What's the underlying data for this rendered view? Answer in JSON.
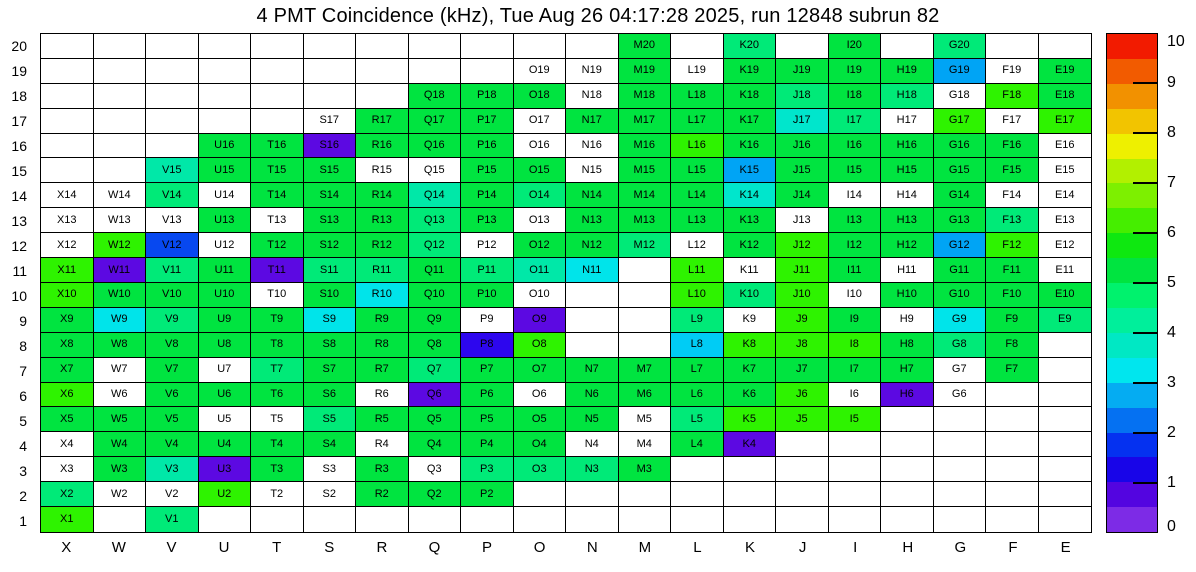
{
  "chart_data": {
    "type": "heatmap",
    "title": "4 PMT Coincidence (kHz), Tue Aug 26 04:17:28 2025, run 12848 subrun 82",
    "x_categories": [
      "X",
      "W",
      "V",
      "U",
      "T",
      "S",
      "R",
      "Q",
      "P",
      "O",
      "N",
      "M",
      "L",
      "K",
      "J",
      "I",
      "H",
      "G",
      "F",
      "E"
    ],
    "y_categories": [
      "20",
      "19",
      "18",
      "17",
      "16",
      "15",
      "14",
      "13",
      "12",
      "11",
      "10",
      "9",
      "8",
      "7",
      "6",
      "5",
      "4",
      "3",
      "2",
      "1"
    ],
    "palette": {
      "g": "#00e440",
      "bg": "#2ef300",
      "sg": "#00ea78",
      "tg": "#00e8a8",
      "tc": "#00e6cc",
      "cy": "#00e4ea",
      "cb": "#00ccf5",
      "sb": "#00a4f5",
      "bl": "#0748f0",
      "bv": "#2d06ee",
      "pu": "#5c09e2",
      "w": "#ffffff"
    },
    "value_estimates_khz": {
      "g": 5.2,
      "bg": 5.8,
      "sg": 4.8,
      "tg": 4.3,
      "tc": 3.8,
      "cy": 3.4,
      "cb": 3.1,
      "sb": 2.8,
      "bl": 2.0,
      "bv": 1.2,
      "pu": 0.8
    },
    "rows": [
      {
        "num": "20",
        "cells": [
          "",
          "",
          "",
          "",
          "",
          "",
          "",
          "",
          "",
          "",
          "",
          "g:M20",
          "",
          "sg:K20",
          "",
          "g:I20",
          "",
          "sg:G20",
          "",
          ""
        ]
      },
      {
        "num": "19",
        "cells": [
          "",
          "",
          "",
          "",
          "",
          "",
          "",
          "",
          "",
          "w:O19",
          "w:N19",
          "g:M19",
          "w:L19",
          "g:K19",
          "g:J19",
          "g:I19",
          "g:H19",
          "sb:G19",
          "w:F19",
          "g:E19"
        ]
      },
      {
        "num": "18",
        "cells": [
          "",
          "",
          "",
          "",
          "",
          "",
          "",
          "g:Q18",
          "g:P18",
          "g:O18",
          "w:N18",
          "g:M18",
          "g:L18",
          "g:K18",
          "sg:J18",
          "g:I18",
          "sg:H18",
          "w:G18",
          "bg:F18",
          "g:E18"
        ]
      },
      {
        "num": "17",
        "cells": [
          "",
          "",
          "",
          "",
          "",
          "w:S17",
          "g:R17",
          "g:Q17",
          "g:P17",
          "w:O17",
          "g:N17",
          "g:M17",
          "g:L17",
          "g:K17",
          "tc:J17",
          "sg:I17",
          "w:H17",
          "bg:G17",
          "w:F17",
          "bg:E17"
        ]
      },
      {
        "num": "16",
        "cells": [
          "",
          "",
          "",
          "g:U16",
          "g:T16",
          "pu:S16",
          "g:R16",
          "g:Q16",
          "g:P16",
          "w:O16",
          "w:N16",
          "g:M16",
          "bg:L16",
          "g:K16",
          "g:J16",
          "g:I16",
          "g:H16",
          "g:G16",
          "g:F16",
          "w:E16"
        ]
      },
      {
        "num": "15",
        "cells": [
          "",
          "",
          "tg:V15",
          "g:U15",
          "g:T15",
          "g:S15",
          "w:R15",
          "w:Q15",
          "g:P15",
          "g:O15",
          "w:N15",
          "g:M15",
          "g:L15",
          "sb:K15",
          "g:J15",
          "g:I15",
          "g:H15",
          "g:G15",
          "g:F15",
          "w:E15"
        ]
      },
      {
        "num": "14",
        "cells": [
          "w:X14",
          "w:W14",
          "sg:V14",
          "w:U14",
          "g:T14",
          "g:S14",
          "g:R14",
          "tg:Q14",
          "g:P14",
          "sg:O14",
          "g:N14",
          "g:M14",
          "g:L14",
          "tc:K14",
          "g:J14",
          "w:I14",
          "w:H14",
          "g:G14",
          "w:F14",
          "w:E14"
        ]
      },
      {
        "num": "13",
        "cells": [
          "w:X13",
          "w:W13",
          "w:V13",
          "g:U13",
          "w:T13",
          "g:S13",
          "g:R13",
          "sg:Q13",
          "g:P13",
          "w:O13",
          "g:N13",
          "g:M13",
          "g:L13",
          "g:K13",
          "w:J13",
          "g:I13",
          "g:H13",
          "g:G13",
          "sg:F13",
          "w:E13"
        ]
      },
      {
        "num": "12",
        "cells": [
          "w:X12",
          "bg:W12",
          "bl:V12",
          "w:U12",
          "g:T12",
          "g:S12",
          "g:R12",
          "sg:Q12",
          "w:P12",
          "g:O12",
          "g:N12",
          "sg:M12",
          "w:L12",
          "g:K12",
          "bg:J12",
          "g:I12",
          "g:H12",
          "sb:G12",
          "bg:F12",
          "w:E12"
        ]
      },
      {
        "num": "11",
        "cells": [
          "bg:X11",
          "pu:W11",
          "sg:V11",
          "g:U11",
          "pu:T11",
          "sg:S11",
          "sg:R11",
          "g:Q11",
          "sg:P11",
          "tg:O11",
          "cy:N11",
          "",
          "bg:L11",
          "w:K11",
          "bg:J11",
          "g:I11",
          "w:H11",
          "g:G11",
          "g:F11",
          "w:E11"
        ]
      },
      {
        "num": "10",
        "cells": [
          "bg:X10",
          "g:W10",
          "g:V10",
          "g:U10",
          "w:T10",
          "g:S10",
          "cy:R10",
          "g:Q10",
          "g:P10",
          "w:O10",
          "",
          "",
          "bg:L10",
          "sg:K10",
          "bg:J10",
          "w:I10",
          "g:H10",
          "g:G10",
          "g:F10",
          "g:E10"
        ]
      },
      {
        "num": "9",
        "cells": [
          "g:X9",
          "cy:W9",
          "sg:V9",
          "g:U9",
          "g:T9",
          "cy:S9",
          "g:R9",
          "g:Q9",
          "w:P9",
          "pu:O9",
          "",
          "",
          "sg:L9",
          "w:K9",
          "bg:J9",
          "g:I9",
          "w:H9",
          "cy:G9",
          "g:F9",
          "sg:E9"
        ]
      },
      {
        "num": "8",
        "cells": [
          "g:X8",
          "g:W8",
          "g:V8",
          "g:U8",
          "g:T8",
          "g:S8",
          "g:R8",
          "g:Q8",
          "bv:P8",
          "bg:O8",
          "",
          "",
          "cb:L8",
          "bg:K8",
          "bg:J8",
          "bg:I8",
          "g:H8",
          "sg:G8",
          "g:F8",
          ""
        ]
      },
      {
        "num": "7",
        "cells": [
          "g:X7",
          "w:W7",
          "g:V7",
          "w:U7",
          "sg:T7",
          "g:S7",
          "g:R7",
          "sg:Q7",
          "g:P7",
          "g:O7",
          "g:N7",
          "g:M7",
          "g:L7",
          "g:K7",
          "g:J7",
          "g:I7",
          "g:H7",
          "w:G7",
          "g:F7",
          ""
        ]
      },
      {
        "num": "6",
        "cells": [
          "bg:X6",
          "w:W6",
          "g:V6",
          "g:U6",
          "g:T6",
          "g:S6",
          "w:R6",
          "pu:Q6",
          "g:P6",
          "w:O6",
          "g:N6",
          "g:M6",
          "g:L6",
          "g:K6",
          "bg:J6",
          "w:I6",
          "pu:H6",
          "w:G6",
          "",
          ""
        ]
      },
      {
        "num": "5",
        "cells": [
          "g:X5",
          "g:W5",
          "g:V5",
          "w:U5",
          "w:T5",
          "sg:S5",
          "g:R5",
          "g:Q5",
          "g:P5",
          "g:O5",
          "g:N5",
          "w:M5",
          "sg:L5",
          "bg:K5",
          "bg:J5",
          "bg:I5",
          "",
          "",
          "",
          ""
        ]
      },
      {
        "num": "4",
        "cells": [
          "w:X4",
          "g:W4",
          "g:V4",
          "g:U4",
          "g:T4",
          "g:S4",
          "w:R4",
          "g:Q4",
          "g:P4",
          "g:O4",
          "w:N4",
          "w:M4",
          "g:L4",
          "pu:K4",
          "",
          "",
          "",
          "",
          "",
          ""
        ]
      },
      {
        "num": "3",
        "cells": [
          "w:X3",
          "g:W3",
          "tg:V3",
          "pu:U3",
          "g:T3",
          "w:S3",
          "g:R3",
          "w:Q3",
          "sg:P3",
          "sg:O3",
          "sg:N3",
          "g:M3",
          "",
          "",
          "",
          "",
          "",
          "",
          "",
          ""
        ]
      },
      {
        "num": "2",
        "cells": [
          "sg:X2",
          "w:W2",
          "w:V2",
          "bg:U2",
          "w:T2",
          "w:S2",
          "g:R2",
          "g:Q2",
          "g:P2",
          "",
          "",
          "",
          "",
          "",
          "",
          "",
          "",
          "",
          "",
          ""
        ]
      },
      {
        "num": "1",
        "cells": [
          "bg:X1",
          "",
          "sg:V1",
          "",
          "",
          "",
          "",
          "",
          "",
          "",
          "",
          "",
          "",
          "",
          "",
          "",
          "",
          "",
          "",
          ""
        ]
      }
    ],
    "colorbar": {
      "min": 0,
      "max": 10,
      "tick_labels_top_to_bottom": [
        "10",
        "9",
        "8",
        "7",
        "6",
        "5",
        "4",
        "3",
        "2",
        "1",
        "0"
      ],
      "bands_top_to_bottom": [
        "#f21b00",
        "#f25b00",
        "#f29100",
        "#f2c400",
        "#eef000",
        "#b2f000",
        "#7df000",
        "#45ee00",
        "#0ee810",
        "#00e440",
        "#00f26d",
        "#00ef9b",
        "#00e8c4",
        "#00e6ee",
        "#05acf2",
        "#0571f2",
        "#0531f0",
        "#1805e8",
        "#5305e0",
        "#7d2be6"
      ]
    }
  }
}
